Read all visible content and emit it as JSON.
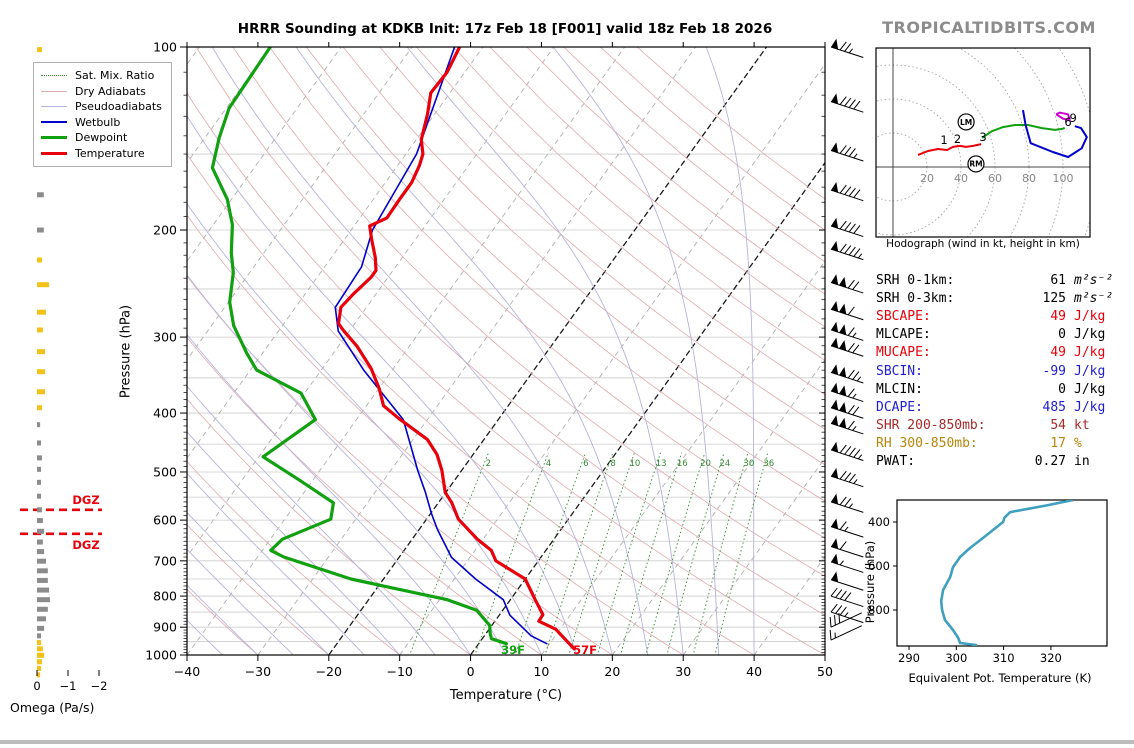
{
  "title": "HRRR Sounding at KDKB Init: 17z Feb 18 [F001] valid 18z Feb 18 2026",
  "watermark": "TROPICALTIDBITS.COM",
  "legend": [
    {
      "label": "Sat. Mix. Ratio",
      "color": "#2e8b2e",
      "style": "dotted",
      "weight": 1
    },
    {
      "label": "Dry Adiabats",
      "color": "#e2a9ad",
      "style": "solid",
      "weight": 1
    },
    {
      "label": "Pseudoadiabats",
      "color": "#b4b4dc",
      "style": "solid",
      "weight": 1
    },
    {
      "label": "Wetbulb",
      "color": "#0000cc",
      "style": "solid",
      "weight": 2
    },
    {
      "label": "Dewpoint",
      "color": "#10a010",
      "style": "solid",
      "weight": 3
    },
    {
      "label": "Temperature",
      "color": "#e8000b",
      "style": "solid",
      "weight": 3
    }
  ],
  "chart_data": [
    {
      "type": "line",
      "name": "skewt",
      "xlabel": "Temperature (°C)",
      "ylabel": "Pressure (hPa)",
      "xlim": [
        -40,
        50
      ],
      "plim": [
        100,
        1000
      ],
      "t_ticks": [
        -40,
        -30,
        -20,
        -10,
        0,
        10,
        20,
        30,
        40,
        50
      ],
      "p_ticks": [
        100,
        200,
        300,
        400,
        500,
        600,
        700,
        800,
        900,
        1000
      ],
      "isotherm_step": 10,
      "highlight_isotherms": [
        0,
        -20
      ],
      "mixing_ratio_labels": [
        2,
        4,
        6,
        8,
        10,
        13,
        16,
        20,
        24,
        30,
        36
      ],
      "dgz": {
        "label": "DGZ",
        "pressures": [
          577,
          632
        ],
        "color": "#e8000b"
      },
      "surface_labels": {
        "dewpoint_f": "39F",
        "temperature_f": "57F"
      },
      "series": [
        {
          "name": "Wetbulb",
          "color": "#0000cc",
          "width": 1.6,
          "points": [
            [
              100,
              -64
            ],
            [
              150,
              -58.5
            ],
            [
              200,
              -57
            ],
            [
              230,
              -54.8
            ],
            [
              268,
              -54.4
            ],
            [
              293,
              -51.6
            ],
            [
              340,
              -44
            ],
            [
              410,
              -33.4
            ],
            [
              497,
              -26.2
            ],
            [
              540,
              -22.9
            ],
            [
              585,
              -19.9
            ],
            [
              622,
              -17.4
            ],
            [
              691,
              -12.6
            ],
            [
              750,
              -7
            ],
            [
              811,
              -1
            ],
            [
              860,
              1.5
            ],
            [
              930,
              6.6
            ],
            [
              958,
              9.6
            ]
          ]
        },
        {
          "name": "Dewpoint",
          "color": "#10a010",
          "width": 3.2,
          "points": [
            [
              100,
              -90
            ],
            [
              126,
              -89.6
            ],
            [
              141,
              -88
            ],
            [
              158,
              -85.9
            ],
            [
              178,
              -80.6
            ],
            [
              196,
              -77.3
            ],
            [
              218,
              -74.6
            ],
            [
              235,
              -72.3
            ],
            [
              263,
              -69.8
            ],
            [
              287,
              -66.9
            ],
            [
              319,
              -62.2
            ],
            [
              340,
              -59.1
            ],
            [
              371,
              -50.5
            ],
            [
              410,
              -45.8
            ],
            [
              440,
              -47.6
            ],
            [
              472,
              -49.4
            ],
            [
              515,
              -42
            ],
            [
              562,
              -34.8
            ],
            [
              598,
              -33.5
            ],
            [
              645,
              -38.3
            ],
            [
              673,
              -38.8
            ],
            [
              690,
              -36.3
            ],
            [
              750,
              -24.6
            ],
            [
              811,
              -8.9
            ],
            [
              844,
              -3.7
            ],
            [
              894,
              -0.3
            ],
            [
              922,
              0.6
            ],
            [
              940,
              1.3
            ],
            [
              958,
              3.9
            ]
          ]
        },
        {
          "name": "Temperature",
          "color": "#e8000b",
          "width": 3.2,
          "points": [
            [
              100,
              -63.3
            ],
            [
              110,
              -62.5
            ],
            [
              119,
              -62.7
            ],
            [
              129,
              -61
            ],
            [
              142,
              -59.3
            ],
            [
              150,
              -57.6
            ],
            [
              157,
              -56.9
            ],
            [
              167,
              -56.3
            ],
            [
              178,
              -56.3
            ],
            [
              191,
              -56.2
            ],
            [
              197,
              -57.8
            ],
            [
              207,
              -56.2
            ],
            [
              222,
              -53.8
            ],
            [
              233,
              -52.4
            ],
            [
              239,
              -52.4
            ],
            [
              255,
              -53.2
            ],
            [
              268,
              -53.6
            ],
            [
              285,
              -52.3
            ],
            [
              293,
              -50.8
            ],
            [
              311,
              -47.3
            ],
            [
              338,
              -43.1
            ],
            [
              365,
              -39.9
            ],
            [
              389,
              -37.6
            ],
            [
              408,
              -34.2
            ],
            [
              442,
              -28
            ],
            [
              468,
              -25.1
            ],
            [
              497,
              -22.8
            ],
            [
              540,
              -20.1
            ],
            [
              562,
              -18.1
            ],
            [
              598,
              -15.5
            ],
            [
              645,
              -10.8
            ],
            [
              673,
              -7.7
            ],
            [
              700,
              -6
            ],
            [
              750,
              0
            ],
            [
              811,
              3.5
            ],
            [
              858,
              6.1
            ],
            [
              880,
              6.2
            ],
            [
              907,
              9.4
            ],
            [
              940,
              11.6
            ],
            [
              977,
              14
            ]
          ]
        }
      ],
      "wind_barbs": [
        [
          100,
          75
        ],
        [
          123,
          90
        ],
        [
          148,
          85
        ],
        [
          172,
          90
        ],
        [
          197,
          90
        ],
        [
          215,
          95
        ],
        [
          244,
          120
        ],
        [
          270,
          110
        ],
        [
          292,
          115
        ],
        [
          310,
          120
        ],
        [
          343,
          125
        ],
        [
          368,
          115
        ],
        [
          392,
          120
        ],
        [
          416,
          115
        ],
        [
          460,
          95
        ],
        [
          508,
          85
        ],
        [
          560,
          75
        ],
        [
          615,
          65
        ],
        [
          663,
          60
        ],
        [
          703,
          55
        ],
        [
          752,
          50
        ],
        [
          800,
          40
        ],
        [
          850,
          35
        ],
        [
          900,
          30
        ],
        [
          945,
          15
        ]
      ]
    },
    {
      "type": "line",
      "name": "hodograph",
      "caption": "Hodograph (wind in kt, height in km)",
      "ring_step_kt": 20,
      "x_ticks": [
        20,
        40,
        60,
        80,
        100
      ],
      "series": [
        {
          "name": "0-3km",
          "color": "#e8000b",
          "points": [
            [
              14.7,
              7.1
            ],
            [
              20.6,
              9.4
            ],
            [
              26.5,
              10.6
            ],
            [
              31.8,
              10
            ],
            [
              35.3,
              11.8
            ],
            [
              39.4,
              12.4
            ],
            [
              42.9,
              11.8
            ],
            [
              47.1,
              12.4
            ],
            [
              51.8,
              13.5
            ]
          ]
        },
        {
          "name": "3-6km",
          "color": "#10a010",
          "points": [
            [
              52.4,
              17.1
            ],
            [
              58,
              21
            ],
            [
              64.7,
              23.5
            ],
            [
              71.8,
              24.7
            ],
            [
              79.4,
              24.7
            ],
            [
              87.6,
              22.9
            ],
            [
              95.3,
              21.8
            ],
            [
              99.4,
              22.4
            ],
            [
              101,
              23
            ]
          ]
        },
        {
          "name": "6-9km",
          "color": "#0000cc",
          "points": [
            [
              76.5,
              33.5
            ],
            [
              78,
              24.7
            ],
            [
              81,
              14
            ],
            [
              94,
              8.8
            ],
            [
              103,
              5.9
            ],
            [
              111,
              11
            ],
            [
              114,
              17.6
            ],
            [
              110.6,
              22.9
            ],
            [
              107,
              24
            ]
          ]
        },
        {
          "name": "9km+",
          "color": "#cc00cc",
          "points": [
            [
              96,
              31
            ],
            [
              100,
              28.5
            ],
            [
              104,
              27.5
            ],
            [
              103,
              31
            ],
            [
              98,
              32
            ],
            [
              96,
              31
            ]
          ]
        }
      ],
      "height_labels": [
        {
          "label": "1",
          "u": 30,
          "v": 13.5
        },
        {
          "label": "2",
          "u": 38,
          "v": 14.1
        },
        {
          "label": "3",
          "u": 53,
          "v": 15.3
        },
        {
          "label": "6",
          "u": 103,
          "v": 24.2
        },
        {
          "label": "9",
          "u": 106,
          "v": 26.5
        }
      ],
      "markers": [
        {
          "label": "LM",
          "u": 43,
          "v": 26.5
        },
        {
          "label": "RM",
          "u": 48.8,
          "v": 1.8
        }
      ]
    },
    {
      "type": "line",
      "name": "theta_e",
      "xlabel": "Equivalent Pot. Temperature (K)",
      "ylabel": "Pressure (hPa)",
      "x_ticks": [
        290,
        300,
        310,
        320
      ],
      "p_ticks": [
        400,
        600,
        800
      ],
      "color": "#3f9fbe",
      "points": [
        [
          324.7,
          300
        ],
        [
          319,
          325
        ],
        [
          311.4,
          355
        ],
        [
          310.2,
          380
        ],
        [
          309.9,
          400
        ],
        [
          307.8,
          436
        ],
        [
          305.6,
          473
        ],
        [
          302.9,
          518
        ],
        [
          300.8,
          559
        ],
        [
          299.3,
          605
        ],
        [
          298.7,
          650
        ],
        [
          297.2,
          709
        ],
        [
          296.8,
          760
        ],
        [
          297,
          800
        ],
        [
          297.6,
          845
        ],
        [
          299.3,
          891
        ],
        [
          300.4,
          927
        ],
        [
          300.8,
          950
        ],
        [
          304.4,
          960
        ]
      ]
    },
    {
      "type": "bar",
      "name": "omega",
      "xlabel": "Omega (Pa/s)",
      "x_ticks": [
        0,
        -1,
        -2
      ],
      "colors": {
        "g": "#8c8c8c",
        "y": "#f2c218"
      },
      "bars": [
        [
          101,
          -0.16,
          "y"
        ],
        [
          126,
          -0.13,
          "g"
        ],
        [
          151,
          -0.13,
          "g"
        ],
        [
          175,
          -0.22,
          "g"
        ],
        [
          200,
          -0.22,
          "g"
        ],
        [
          224,
          -0.16,
          "y"
        ],
        [
          246,
          -0.39,
          "y"
        ],
        [
          273,
          -0.29,
          "y"
        ],
        [
          292,
          -0.19,
          "y"
        ],
        [
          317,
          -0.26,
          "y"
        ],
        [
          342,
          -0.26,
          "y"
        ],
        [
          369,
          -0.26,
          "y"
        ],
        [
          392,
          -0.16,
          "y"
        ],
        [
          418,
          -0.1,
          "g"
        ],
        [
          448,
          -0.13,
          "g"
        ],
        [
          474,
          -0.16,
          "g"
        ],
        [
          495,
          -0.13,
          "g"
        ],
        [
          520,
          -0.13,
          "g"
        ],
        [
          548,
          -0.13,
          "g"
        ],
        [
          577,
          -0.16,
          "g"
        ],
        [
          601,
          -0.19,
          "g"
        ],
        [
          626,
          -0.23,
          "g"
        ],
        [
          652,
          -0.19,
          "g"
        ],
        [
          676,
          -0.23,
          "g"
        ],
        [
          701,
          -0.29,
          "g"
        ],
        [
          727,
          -0.35,
          "g"
        ],
        [
          754,
          -0.35,
          "g"
        ],
        [
          782,
          -0.39,
          "g"
        ],
        [
          811,
          -0.42,
          "g"
        ],
        [
          841,
          -0.35,
          "g"
        ],
        [
          872,
          -0.29,
          "g"
        ],
        [
          904,
          -0.23,
          "g"
        ],
        [
          930,
          -0.13,
          "g"
        ],
        [
          954,
          -0.13,
          "y"
        ],
        [
          977,
          -0.19,
          "y"
        ],
        [
          1001,
          -0.23,
          "y"
        ],
        [
          1026,
          -0.16,
          "y"
        ],
        [
          1052,
          -0.13,
          "y"
        ],
        [
          1078,
          -0.1,
          "y"
        ]
      ]
    },
    {
      "type": "table",
      "name": "indices",
      "rows": [
        {
          "label": "SRH 0-1km:",
          "value": "61",
          "unit": "m²s⁻²",
          "color": "#000000",
          "italic_unit": true
        },
        {
          "label": "SRH 0-3km:",
          "value": "125",
          "unit": "m²s⁻²",
          "color": "#000000",
          "italic_unit": true
        },
        {
          "label": "SBCAPE:",
          "value": "49",
          "unit": "J/kg",
          "color": "#e8000b",
          "italic_unit": false
        },
        {
          "label": "MLCAPE:",
          "value": "0",
          "unit": "J/kg",
          "color": "#000000",
          "italic_unit": false
        },
        {
          "label": "MUCAPE:",
          "value": "49",
          "unit": "J/kg",
          "color": "#e8000b",
          "italic_unit": false
        },
        {
          "label": "SBCIN:",
          "value": "-99",
          "unit": "J/kg",
          "color": "#2020d0",
          "italic_unit": false
        },
        {
          "label": "MLCIN:",
          "value": "0",
          "unit": "J/kg",
          "color": "#000000",
          "italic_unit": false
        },
        {
          "label": "DCAPE:",
          "value": "485",
          "unit": "J/kg",
          "color": "#2020d0",
          "italic_unit": false
        },
        {
          "label": "SHR 200-850mb:",
          "value": "54",
          "unit": "kt",
          "color": "#a52a2a",
          "italic_unit": false
        },
        {
          "label": "RH 300-850mb:",
          "value": "17",
          "unit": "%",
          "color": "#b8860b",
          "italic_unit": false
        },
        {
          "label": "PWAT:",
          "value": "0.27",
          "unit": "in",
          "color": "#000000",
          "italic_unit": false
        }
      ]
    }
  ]
}
